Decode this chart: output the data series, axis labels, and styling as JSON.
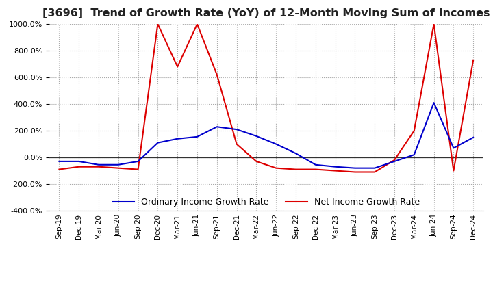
{
  "title": "[3696]  Trend of Growth Rate (YoY) of 12-Month Moving Sum of Incomes",
  "title_fontsize": 11.5,
  "ylim": [
    -400,
    1000
  ],
  "yticks": [
    -400,
    -200,
    0,
    200,
    400,
    600,
    800,
    1000
  ],
  "background_color": "#ffffff",
  "grid_color": "#aaaaaa",
  "ordinary_color": "#0000cc",
  "net_color": "#dd0000",
  "legend_labels": [
    "Ordinary Income Growth Rate",
    "Net Income Growth Rate"
  ],
  "x_labels": [
    "Sep-19",
    "Dec-19",
    "Mar-20",
    "Jun-20",
    "Sep-20",
    "Dec-20",
    "Mar-21",
    "Jun-21",
    "Sep-21",
    "Dec-21",
    "Mar-22",
    "Jun-22",
    "Sep-22",
    "Dec-22",
    "Mar-23",
    "Jun-23",
    "Sep-23",
    "Dec-23",
    "Mar-24",
    "Jun-24",
    "Sep-24",
    "Dec-24"
  ],
  "ordinary_income_growth": [
    -30,
    -30,
    -55,
    -55,
    -30,
    110,
    140,
    155,
    230,
    210,
    160,
    100,
    30,
    -55,
    -70,
    -80,
    -80,
    -30,
    20,
    410,
    70,
    150
  ],
  "net_income_growth": [
    -90,
    -70,
    -70,
    -80,
    -90,
    1000,
    680,
    1000,
    620,
    100,
    -30,
    -80,
    -90,
    -90,
    -100,
    -110,
    -110,
    -20,
    200,
    1000,
    -100,
    730
  ]
}
